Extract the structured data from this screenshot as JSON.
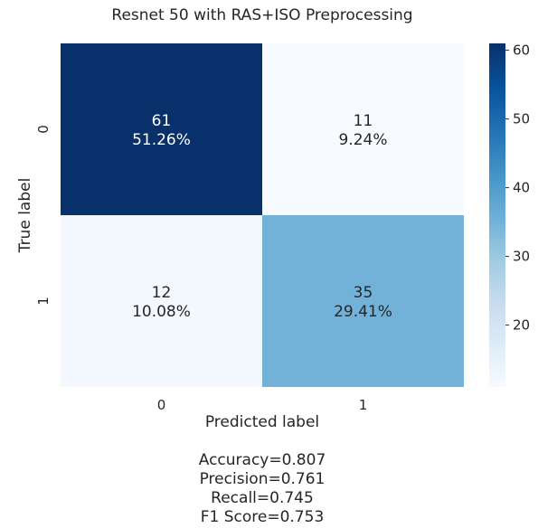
{
  "chart_data": {
    "type": "heatmap",
    "title": "Resnet 50 with RAS+ISO Preprocessing",
    "xlabel": "Predicted label",
    "ylabel": "True label",
    "x_categories": [
      "0",
      "1"
    ],
    "y_categories": [
      "0",
      "1"
    ],
    "values": [
      [
        61,
        11
      ],
      [
        12,
        35
      ]
    ],
    "percentages": [
      [
        "51.26%",
        "9.24%"
      ],
      [
        "10.08%",
        "29.41%"
      ]
    ],
    "colorbar": {
      "min": 11,
      "max": 61,
      "ticks": [
        "20",
        "30",
        "40",
        "50",
        "60"
      ],
      "colormap": "Blues"
    },
    "grid": false
  },
  "metrics": [
    "Accuracy=0.807",
    "Precision=0.761",
    "Recall=0.745",
    "F1 Score=0.753"
  ],
  "colors": {
    "low": "#f7fbff",
    "high": "#08306b",
    "text_dark": "#262626",
    "text_light": "#ffffff"
  }
}
